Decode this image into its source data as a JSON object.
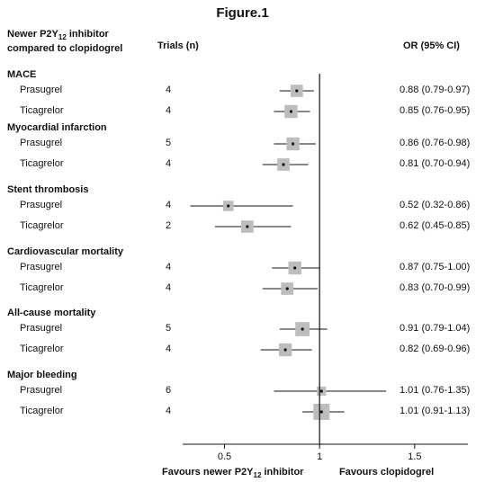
{
  "title": "Figure.1",
  "headers": {
    "comparison_line1": "Newer P2Y",
    "comparison_sub": "12",
    "comparison_line1_suffix": " inhibitor",
    "comparison_line2": "compared to clopidogrel",
    "trials": "Trials (n)",
    "or": "OR (95% CI)"
  },
  "footer": {
    "left_prefix": "Favours newer P2Y",
    "left_sub": "12",
    "left_suffix": " inhibitor",
    "right": "Favours clopidogrel"
  },
  "chart_data": {
    "type": "forest",
    "x_ticks": [
      0.5,
      1,
      1.5
    ],
    "x_tick_labels": [
      "0.5",
      "1",
      "1.5"
    ],
    "xlim": [
      0.28,
      1.78
    ],
    "reference_line": 1,
    "groups": [
      {
        "name": "MACE",
        "rows": [
          {
            "label": "Prasugrel",
            "trials": "4",
            "or": 0.88,
            "lo": 0.79,
            "hi": 0.97,
            "text": "0.88 (0.79-0.97)",
            "weight": 0.55
          },
          {
            "label": "Ticagrelor",
            "trials": "4",
            "or": 0.85,
            "lo": 0.76,
            "hi": 0.95,
            "text": "0.85 (0.76-0.95)",
            "weight": 0.6
          }
        ]
      },
      {
        "name": "Myocardial infarction",
        "rows": [
          {
            "label": "Prasugrel",
            "trials": "5",
            "or": 0.86,
            "lo": 0.76,
            "hi": 0.98,
            "text": "0.86 (0.76-0.98)",
            "weight": 0.6
          },
          {
            "label": "Ticagrelor",
            "trials": "4",
            "or": 0.81,
            "lo": 0.7,
            "hi": 0.94,
            "text": "0.81 (0.70-0.94)",
            "weight": 0.55
          }
        ]
      },
      {
        "name": "Stent thrombosis",
        "rows": [
          {
            "label": "Prasugrel",
            "trials": "4",
            "or": 0.52,
            "lo": 0.32,
            "hi": 0.86,
            "text": "0.52 (0.32-0.86)",
            "weight": 0.4
          },
          {
            "label": "Ticagrelor",
            "trials": "2",
            "or": 0.62,
            "lo": 0.45,
            "hi": 0.85,
            "text": "0.62 (0.45-0.85)",
            "weight": 0.55
          }
        ]
      },
      {
        "name": "Cardiovascular mortality",
        "rows": [
          {
            "label": "Prasugrel",
            "trials": "4",
            "or": 0.87,
            "lo": 0.75,
            "hi": 1.0,
            "text": "0.87 (0.75-1.00)",
            "weight": 0.6
          },
          {
            "label": "Ticagrelor",
            "trials": "4",
            "or": 0.83,
            "lo": 0.7,
            "hi": 0.99,
            "text": "0.83 (0.70-0.99)",
            "weight": 0.55
          }
        ]
      },
      {
        "name": "All-cause mortality",
        "rows": [
          {
            "label": "Prasugrel",
            "trials": "5",
            "or": 0.91,
            "lo": 0.79,
            "hi": 1.04,
            "text": "0.91 (0.79-1.04)",
            "weight": 0.7
          },
          {
            "label": "Ticagrelor",
            "trials": "4",
            "or": 0.82,
            "lo": 0.69,
            "hi": 0.96,
            "text": "0.82 (0.69-0.96)",
            "weight": 0.6
          }
        ]
      },
      {
        "name": "Major bleeding",
        "rows": [
          {
            "label": "Prasugrel",
            "trials": "6",
            "or": 1.01,
            "lo": 0.76,
            "hi": 1.35,
            "text": "1.01 (0.76-1.35)",
            "weight": 0.3
          },
          {
            "label": "Ticagrelor",
            "trials": "4",
            "or": 1.01,
            "lo": 0.91,
            "hi": 1.13,
            "text": "1.01 (0.91-1.13)",
            "weight": 0.85
          }
        ]
      }
    ]
  }
}
